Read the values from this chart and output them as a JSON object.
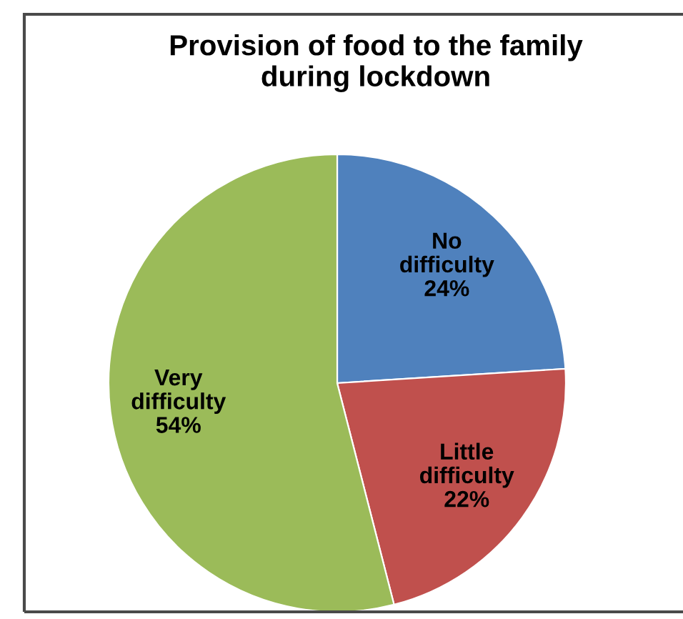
{
  "chart_data": {
    "type": "pie",
    "title": "Provision of food to the family\nduring lockdown",
    "categories": [
      "No difficulty",
      "Little difficulty",
      "Very difficulty"
    ],
    "values": [
      24,
      22,
      54
    ],
    "colors": [
      "#4f81bd",
      "#c0504d",
      "#9bbb59"
    ],
    "value_labels": [
      "24%",
      "22%",
      "54%"
    ]
  }
}
